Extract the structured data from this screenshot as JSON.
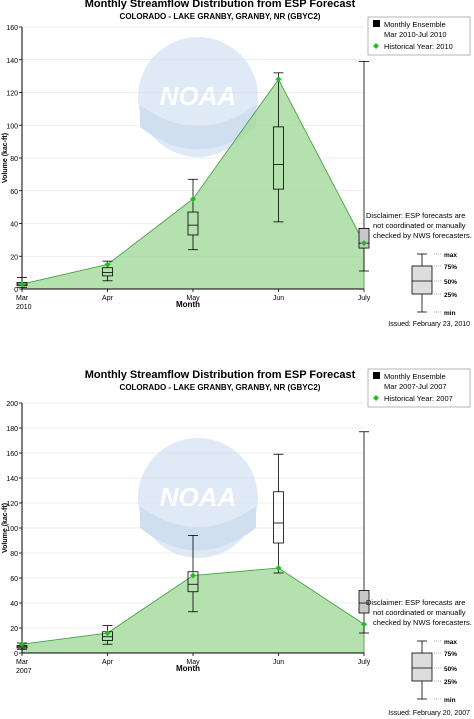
{
  "chart_data": [
    {
      "type": "box",
      "title": "Monthly Streamflow Distribution from ESP Forecast",
      "subtitle": "COLORADO - LAKE GRANBY, GRANBY, NR (GBYC2)",
      "xlabel": "Month",
      "ylabel": "Volume (kac-ft)",
      "ylim": [
        0,
        160
      ],
      "yticks": [
        0,
        20,
        40,
        60,
        80,
        100,
        120,
        140,
        160
      ],
      "categories": [
        "Mar\n2010",
        "Apr",
        "May",
        "Jun",
        "July"
      ],
      "legend": {
        "ensemble": "Monthly Ensemble",
        "ensemble_range": "Mar 2010-Jul 2010",
        "historical": "Historical Year: 2010"
      },
      "boxes": [
        {
          "min": 1,
          "q1": 2,
          "median": 3,
          "q3": 4,
          "max": 7
        },
        {
          "min": 5,
          "q1": 8,
          "median": 10,
          "q3": 13,
          "max": 17
        },
        {
          "min": 24,
          "q1": 33,
          "median": 39,
          "q3": 47,
          "max": 67
        },
        {
          "min": 41,
          "q1": 61,
          "median": 76,
          "q3": 99,
          "max": 132
        },
        {
          "min": 11,
          "q1": 25,
          "median": 28,
          "q3": 37,
          "max": 139
        }
      ],
      "historical": [
        3,
        15,
        55,
        128,
        28
      ],
      "disclaimer": "Disclaimer: ESP forecasts are not coordinated or manually checked by NWS forecasters.",
      "issued": "Issued: February 23, 2010",
      "boxkey": {
        "max": "max",
        "q3": "75%",
        "median": "50%",
        "q1": "25%",
        "min": "min"
      },
      "watermark": "NOAA"
    },
    {
      "type": "box",
      "title": "Monthly Streamflow Distribution from ESP Forecast",
      "subtitle": "COLORADO - LAKE GRANBY, GRANBY, NR (GBYC2)",
      "xlabel": "Month",
      "ylabel": "Volume (kac-ft)",
      "ylim": [
        0,
        200
      ],
      "yticks": [
        0,
        20,
        40,
        60,
        80,
        100,
        120,
        140,
        160,
        180,
        200
      ],
      "categories": [
        "Mar\n2007",
        "Apr",
        "May",
        "Jun",
        "July"
      ],
      "legend": {
        "ensemble": "Monthly Ensemble",
        "ensemble_range": "Mar 2007-Jul 2007",
        "historical": "Historical Year: 2007"
      },
      "boxes": [
        {
          "min": 3,
          "q1": 4,
          "median": 5,
          "q3": 6,
          "max": 8
        },
        {
          "min": 7,
          "q1": 10,
          "median": 13,
          "q3": 17,
          "max": 22
        },
        {
          "min": 33,
          "q1": 49,
          "median": 55,
          "q3": 65,
          "max": 94
        },
        {
          "min": 64,
          "q1": 88,
          "median": 104,
          "q3": 129,
          "max": 159
        },
        {
          "min": 16,
          "q1": 32,
          "median": 40,
          "q3": 50,
          "max": 177
        }
      ],
      "historical": [
        7,
        16,
        62,
        68,
        23
      ],
      "disclaimer": "Disclaimer: ESP forecasts are not coordinated or manually checked by NWS forecasters.",
      "issued": "Issued: February 20, 2007",
      "boxkey": {
        "max": "max",
        "q3": "75%",
        "median": "50%",
        "q1": "25%",
        "min": "min"
      },
      "watermark": "NOAA"
    }
  ],
  "colors": {
    "fill": "#a8dca0",
    "fill_stroke": "#3a9a3a",
    "marker": "#22bb22",
    "box_first": "#99dd99",
    "box_last": "#c8c8c8",
    "grid": "#dddddd",
    "watermark": "#dfeaf6"
  }
}
